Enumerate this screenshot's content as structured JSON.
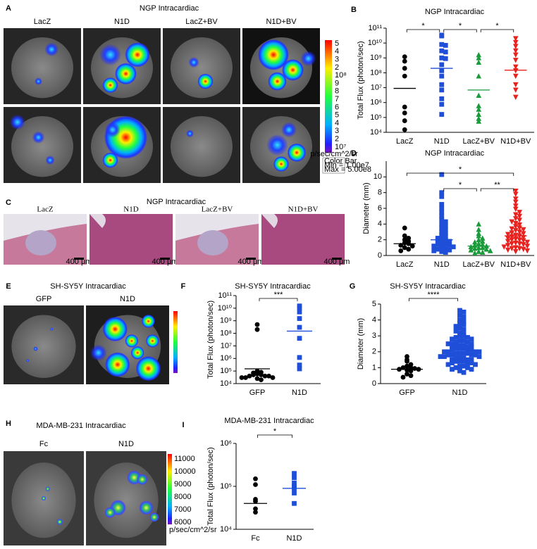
{
  "panels": {
    "A": {
      "label": "A",
      "title": "NGP Intracardiac",
      "columns": [
        "LacZ",
        "N1D",
        "LacZ+BV",
        "N1D+BV"
      ],
      "colorbar": {
        "ticks": [
          "5",
          "4",
          "3",
          "2",
          "10⁸",
          "9",
          "8",
          "7",
          "6",
          "5",
          "4",
          "3",
          "2",
          "10⁷"
        ],
        "unit": "p/sec/cm^2/sr",
        "box": [
          "Color Bar",
          "Min = 1.00e7",
          "Max = 5.00e8"
        ]
      }
    },
    "C": {
      "label": "C",
      "title": "NGP Intracardiac",
      "columns": [
        "LacZ",
        "N1D",
        "LacZ+BV",
        "N1D+BV"
      ],
      "scale_bar": "400 μm"
    },
    "E": {
      "label": "E",
      "title": "SH-SY5Y Intracardiac",
      "columns": [
        "GFP",
        "N1D"
      ]
    },
    "H": {
      "label": "H",
      "title": "MDA-MB-231 Intracardiac",
      "columns": [
        "Fc",
        "N1D"
      ],
      "colorbar": {
        "ticks": [
          11000,
          10000,
          9000,
          8000,
          7000,
          6000
        ],
        "unit": "p/sec/cm^2/sr"
      }
    }
  },
  "chart_data": [
    {
      "type": "strip",
      "panel_label": "B",
      "title": "NGP Intracardiac",
      "ylabel": "Total Flux (photon/sec)",
      "log_scale": true,
      "ylim": [
        10000.0,
        100000000000.0
      ],
      "yticks": [
        {
          "value": 10000.0,
          "label": "10⁴"
        },
        {
          "value": 100000.0,
          "label": "10⁵"
        },
        {
          "value": 1000000.0,
          "label": "10⁶"
        },
        {
          "value": 10000000.0,
          "label": "10⁷"
        },
        {
          "value": 100000000.0,
          "label": "10⁸"
        },
        {
          "value": 1000000000.0,
          "label": "10⁹"
        },
        {
          "value": 10000000000.0,
          "label": "10¹⁰"
        },
        {
          "value": 100000000000.0,
          "label": "10¹¹"
        }
      ],
      "categories": [
        "LacZ",
        "N1D",
        "LacZ+BV",
        "N1D+BV"
      ],
      "series": [
        {
          "color": "#000000",
          "marker": "circle",
          "values": [
            1200000000.0,
            600000000.0,
            200000000.0,
            60000000.0,
            500000.0,
            200000.0,
            60000.0,
            15000.0
          ],
          "mean": 9000000.0
        },
        {
          "color": "#1f4fd8",
          "marker": "square",
          "values": [
            34000000000.0,
            30000000000.0,
            8000000000.0,
            7000000000.0,
            3000000000.0,
            2500000000.0,
            1000000000.0,
            900000000.0,
            350000000.0,
            140000000.0,
            60000000.0,
            16000000.0,
            7000000.0,
            1800000.0,
            760000.0,
            160000.0
          ],
          "mean": 200000000.0
        },
        {
          "color": "#1a9a3a",
          "marker": "triangle",
          "values": [
            1600000000.0,
            1000000000.0,
            500000000.0,
            60000000.0,
            3000000.0,
            600000.0,
            350000.0,
            160000.0,
            85000.0,
            55000.0
          ],
          "mean": 7000000.0
        },
        {
          "color": "#e8231f",
          "marker": "triangle-down",
          "values": [
            20000000000.0,
            11000000000.0,
            6000000000.0,
            3000000000.0,
            1600000000.0,
            700000000.0,
            250000000.0,
            140000000.0,
            60000000.0,
            16000000.0,
            7000000.0,
            2300000.0
          ],
          "mean": 150000000.0
        }
      ],
      "comparisons": [
        {
          "pair": [
            0,
            1
          ],
          "label": "*"
        },
        {
          "pair": [
            1,
            2
          ],
          "label": "*"
        },
        {
          "pair": [
            2,
            3
          ],
          "label": "*"
        }
      ]
    },
    {
      "type": "strip",
      "panel_label": "D",
      "title": "NGP Intracardiac",
      "ylabel": "Diameter (mm)",
      "log_scale": false,
      "ylim": [
        0,
        12
      ],
      "yticks": [
        0,
        2,
        4,
        6,
        8,
        10
      ],
      "categories": [
        "LacZ",
        "N1D",
        "LacZ+BV",
        "N1D+BV"
      ],
      "series": [
        {
          "color": "#000000",
          "marker": "circle",
          "values": [
            3.5,
            2.5,
            2.2,
            2.0,
            1.8,
            1.6,
            1.5,
            1.3,
            1.2,
            1.0,
            0.8,
            0.6
          ],
          "mean": 1.5
        },
        {
          "color": "#1f4fd8",
          "marker": "square",
          "values": [
            10.3,
            8.0,
            7.5,
            6.5,
            6.0,
            5.5,
            5.0,
            4.6,
            4.3,
            4.0,
            3.8,
            3.5,
            3.3,
            3.0,
            2.8,
            2.6,
            2.4,
            2.2,
            2.1,
            2.0,
            1.9,
            1.8,
            1.6,
            1.5,
            1.4,
            1.3,
            1.2,
            1.1,
            1.0,
            0.9,
            0.8,
            0.7,
            0.6,
            0.5,
            0.4
          ],
          "mean": 2.0
        },
        {
          "color": "#1a9a3a",
          "marker": "triangle",
          "values": [
            4.0,
            3.3,
            2.8,
            2.5,
            2.2,
            2.0,
            1.8,
            1.7,
            1.5,
            1.4,
            1.3,
            1.2,
            1.1,
            1.0,
            1.0,
            0.9,
            0.8,
            0.7,
            0.6,
            0.5,
            0.4,
            0.3
          ],
          "mean": 1.2
        },
        {
          "color": "#e8231f",
          "marker": "triangle-down",
          "values": [
            8.2,
            7.8,
            7.2,
            6.8,
            6.3,
            5.9,
            5.5,
            5.2,
            5.0,
            4.7,
            4.5,
            4.3,
            4.1,
            3.9,
            3.7,
            3.5,
            3.4,
            3.3,
            3.2,
            3.0,
            2.9,
            2.8,
            2.7,
            2.6,
            2.5,
            2.4,
            2.3,
            2.2,
            2.1,
            2.0,
            2.0,
            1.9,
            1.8,
            1.7,
            1.6,
            1.5,
            1.5,
            1.4,
            1.3,
            1.2,
            1.1,
            1.0,
            0.9,
            0.9,
            0.8,
            0.7,
            0.6,
            0.5
          ],
          "mean": 2.5
        }
      ],
      "comparisons": [
        {
          "pair": [
            0,
            3
          ],
          "label": "*"
        },
        {
          "pair": [
            1,
            2
          ],
          "label": "*"
        },
        {
          "pair": [
            2,
            3
          ],
          "label": "**"
        }
      ]
    },
    {
      "type": "strip",
      "panel_label": "F",
      "title": "SH-SY5Y Intracardiac",
      "ylabel": "Total Flux (photon/sec)",
      "log_scale": true,
      "ylim": [
        10000.0,
        100000000000.0
      ],
      "yticks": [
        {
          "value": 10000.0,
          "label": "10⁴"
        },
        {
          "value": 100000.0,
          "label": "10⁵"
        },
        {
          "value": 1000000.0,
          "label": "10⁶"
        },
        {
          "value": 10000000.0,
          "label": "10⁷"
        },
        {
          "value": 100000000.0,
          "label": "10⁸"
        },
        {
          "value": 1000000000.0,
          "label": "10⁹"
        },
        {
          "value": 10000000000.0,
          "label": "10¹⁰"
        },
        {
          "value": 100000000000.0,
          "label": "10¹¹"
        }
      ],
      "categories": [
        "GFP",
        "N1D"
      ],
      "series": [
        {
          "color": "#000000",
          "marker": "circle",
          "values": [
            500000000.0,
            200000000.0,
            100000.0,
            80000.0,
            70000.0,
            60000.0,
            50000.0,
            50000.0,
            40000.0,
            40000.0,
            40000.0,
            30000.0,
            30000.0,
            30000.0,
            25000.0,
            20000.0
          ],
          "mean": 150000.0
        },
        {
          "color": "#1f4fd8",
          "marker": "square",
          "values": [
            15000000000.0,
            10000000000.0,
            5000000000.0,
            1500000000.0,
            300000000.0,
            40000000.0,
            1200000.0,
            300000.0,
            150000.0
          ],
          "mean": 150000000.0
        }
      ],
      "comparisons": [
        {
          "pair": [
            0,
            1
          ],
          "label": "***"
        }
      ]
    },
    {
      "type": "strip",
      "panel_label": "G",
      "title": "SH-SY5Y Intracardiac",
      "ylabel": "Diameter (mm)",
      "log_scale": false,
      "ylim": [
        0,
        5
      ],
      "yticks": [
        0,
        1,
        2,
        3,
        4,
        5
      ],
      "categories": [
        "GFP",
        "N1D"
      ],
      "series": [
        {
          "color": "#000000",
          "marker": "circle",
          "values": [
            1.7,
            1.5,
            1.4,
            1.2,
            1.1,
            1.0,
            1.0,
            0.95,
            0.9,
            0.9,
            0.85,
            0.8,
            0.6,
            0.5,
            0.4
          ],
          "mean": 0.9
        },
        {
          "color": "#1f4fd8",
          "marker": "square",
          "values": [
            4.6,
            4.5,
            4.3,
            4.2,
            4.0,
            3.9,
            3.8,
            3.7,
            3.6,
            3.5,
            3.4,
            3.3,
            3.2,
            3.1,
            3.0,
            3.0,
            2.9,
            2.9,
            2.8,
            2.8,
            2.7,
            2.7,
            2.6,
            2.6,
            2.5,
            2.5,
            2.5,
            2.4,
            2.4,
            2.4,
            2.3,
            2.3,
            2.3,
            2.2,
            2.2,
            2.2,
            2.1,
            2.1,
            2.1,
            2.0,
            2.0,
            2.0,
            2.0,
            1.9,
            1.9,
            1.9,
            1.9,
            1.8,
            1.8,
            1.8,
            1.8,
            1.7,
            1.7,
            1.7,
            1.6,
            1.6,
            1.6,
            1.5,
            1.5,
            1.5,
            1.4,
            1.4,
            1.4,
            1.3,
            1.3,
            1.3,
            1.2,
            1.2,
            1.1,
            1.1,
            1.0,
            1.0,
            0.9,
            0.9,
            0.8,
            0.7
          ],
          "mean": 2.0
        }
      ],
      "comparisons": [
        {
          "pair": [
            0,
            1
          ],
          "label": "****"
        }
      ]
    },
    {
      "type": "strip",
      "panel_label": "I",
      "title": "MDA-MB-231 Intracardiac",
      "ylabel": "Total Flux (photon/sec)",
      "log_scale": true,
      "ylim": [
        10000.0,
        1000000.0
      ],
      "yticks": [
        {
          "value": 10000.0,
          "label": "10⁴"
        },
        {
          "value": 100000.0,
          "label": "10⁵"
        },
        {
          "value": 1000000.0,
          "label": "10⁶"
        }
      ],
      "categories": [
        "Fc",
        "N1D"
      ],
      "series": [
        {
          "color": "#000000",
          "marker": "circle",
          "values": [
            150000.0,
            110000.0,
            50000.0,
            45000.0,
            30000.0,
            25000.0
          ],
          "mean": 40000.0
        },
        {
          "color": "#1f4fd8",
          "marker": "square",
          "values": [
            200000.0,
            160000.0,
            120000.0,
            100000.0,
            90000.0,
            70000.0,
            40000.0
          ],
          "mean": 90000.0
        }
      ],
      "comparisons": [
        {
          "pair": [
            0,
            1
          ],
          "label": "*"
        }
      ]
    }
  ]
}
